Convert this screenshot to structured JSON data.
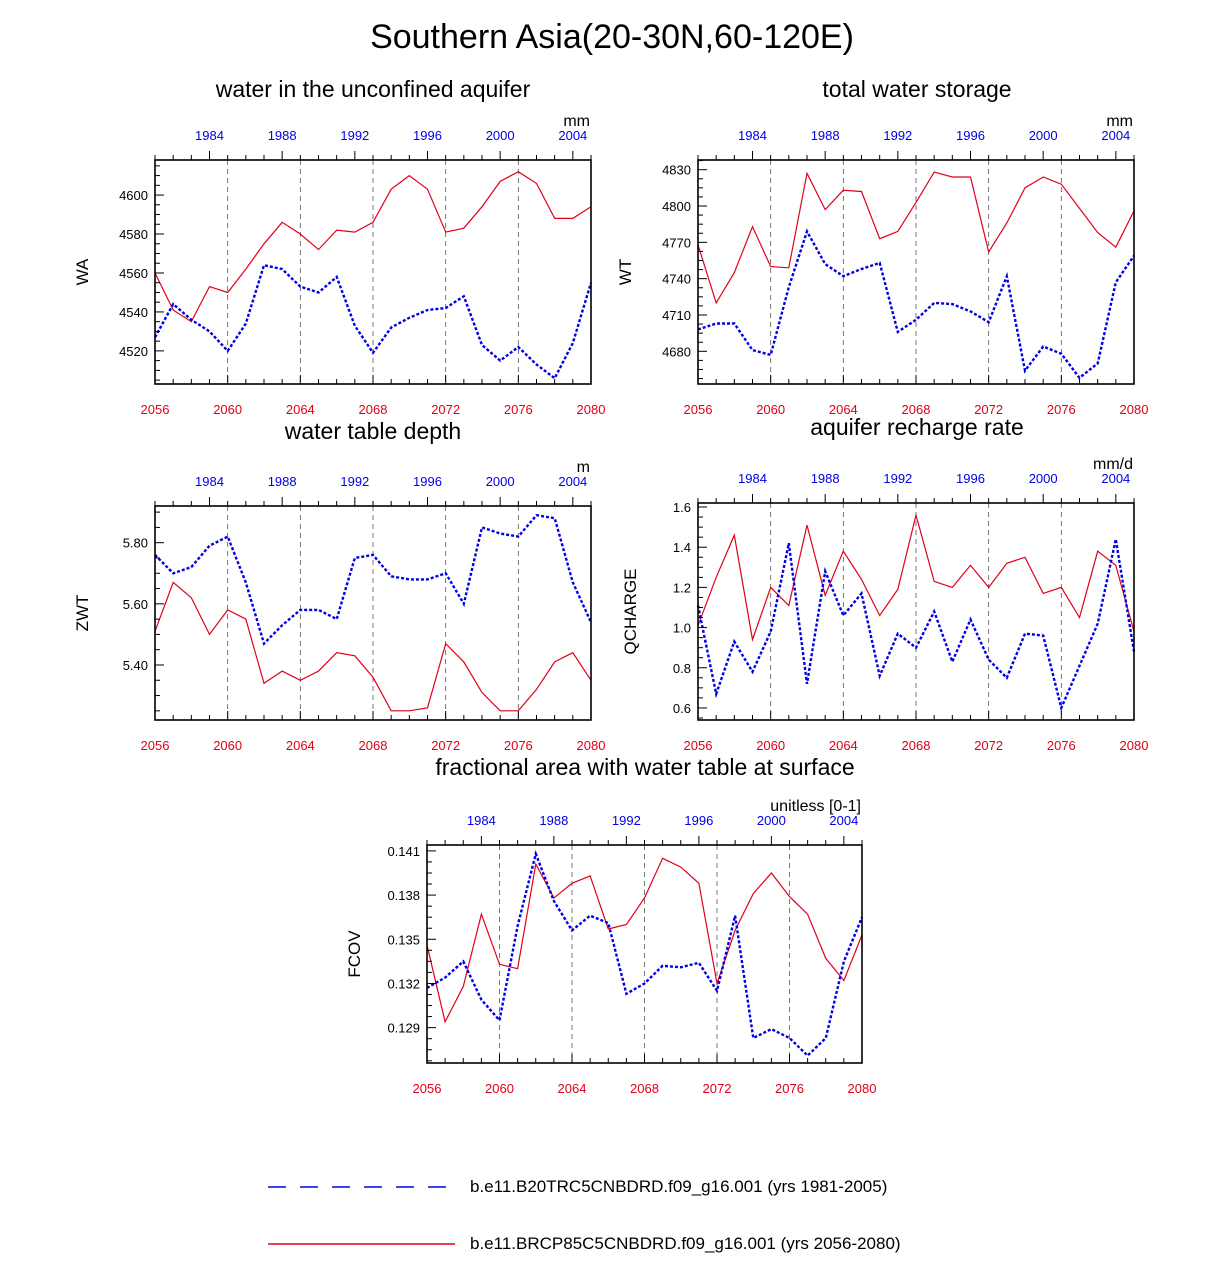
{
  "title": "Southern Asia(20-30N,60-120E)",
  "colors": {
    "future": "#e0001a",
    "historical": "#0000e6",
    "axis": "#000000"
  },
  "x_axes": {
    "bottom": {
      "min": 2056,
      "max": 2080,
      "ticks": [
        "2056",
        "2060",
        "2064",
        "2068",
        "2072",
        "2076",
        "2080"
      ]
    },
    "top": {
      "min": 1981,
      "max": 2005,
      "ticks": [
        "1984",
        "1988",
        "1992",
        "1996",
        "2000",
        "2004"
      ]
    }
  },
  "legend": [
    {
      "label": "b.e11.B20TRC5CNBDRD.f09_g16.001 (yrs 1981-2005)",
      "style": "dashed",
      "color": "#0000e6"
    },
    {
      "label": "b.e11.BRCP85C5CNBDRD.f09_g16.001 (yrs 2056-2080)",
      "style": "solid",
      "color": "#e0001a"
    }
  ],
  "chart_data": [
    {
      "type": "line",
      "title": "water in the unconfined aquifer",
      "ylabel": "WA",
      "units": "mm",
      "ylim": [
        4503,
        4618
      ],
      "yticks": [
        "4520",
        "4540",
        "4560",
        "4580",
        "4600"
      ],
      "series": [
        {
          "name": "b.e11.BRCP85C5CNBDRD.f09_g16.001 (yrs 2056-2080)",
          "x": [
            2056,
            2057,
            2058,
            2059,
            2060,
            2061,
            2062,
            2063,
            2064,
            2065,
            2066,
            2067,
            2068,
            2069,
            2070,
            2071,
            2072,
            2073,
            2074,
            2075,
            2076,
            2077,
            2078,
            2079,
            2080
          ],
          "values": [
            4560,
            4541,
            4535,
            4553,
            4550,
            4562,
            4575,
            4586,
            4580,
            4572,
            4582,
            4581,
            4586,
            4603,
            4610,
            4603,
            4581,
            4583,
            4594,
            4607,
            4612,
            4606,
            4588,
            4588,
            4594
          ]
        },
        {
          "name": "b.e11.B20TRC5CNBDRD.f09_g16.001 (yrs 1981-2005)",
          "x": [
            1981,
            1982,
            1983,
            1984,
            1985,
            1986,
            1987,
            1988,
            1989,
            1990,
            1991,
            1992,
            1993,
            1994,
            1995,
            1996,
            1997,
            1998,
            1999,
            2000,
            2001,
            2002,
            2003,
            2004,
            2005
          ],
          "values": [
            4527,
            4544,
            4536,
            4530,
            4520,
            4534,
            4564,
            4562,
            4553,
            4550,
            4558,
            4533,
            4519,
            4532,
            4537,
            4541,
            4542,
            4548,
            4523,
            4515,
            4522,
            4513,
            4506,
            4524,
            4555
          ]
        }
      ]
    },
    {
      "type": "line",
      "title": "total water storage",
      "ylabel": "WT",
      "units": "mm",
      "ylim": [
        4653,
        4838
      ],
      "yticks": [
        "4680",
        "4710",
        "4740",
        "4770",
        "4800",
        "4830"
      ],
      "series": [
        {
          "name": "b.e11.BRCP85C5CNBDRD.f09_g16.001 (yrs 2056-2080)",
          "x": [
            2056,
            2057,
            2058,
            2059,
            2060,
            2061,
            2062,
            2063,
            2064,
            2065,
            2066,
            2067,
            2068,
            2069,
            2070,
            2071,
            2072,
            2073,
            2074,
            2075,
            2076,
            2077,
            2078,
            2079,
            2080
          ],
          "values": [
            4768,
            4720,
            4745,
            4783,
            4750,
            4749,
            4827,
            4797,
            4813,
            4812,
            4773,
            4779,
            4803,
            4828,
            4824,
            4824,
            4762,
            4786,
            4815,
            4824,
            4818,
            4798,
            4778,
            4766,
            4796
          ]
        },
        {
          "name": "b.e11.B20TRC5CNBDRD.f09_g16.001 (yrs 1981-2005)",
          "x": [
            1981,
            1982,
            1983,
            1984,
            1985,
            1986,
            1987,
            1988,
            1989,
            1990,
            1991,
            1992,
            1993,
            1994,
            1995,
            1996,
            1997,
            1998,
            1999,
            2000,
            2001,
            2002,
            2003,
            2004,
            2005
          ],
          "values": [
            4698,
            4703,
            4703,
            4681,
            4677,
            4733,
            4779,
            4752,
            4742,
            4748,
            4753,
            4696,
            4706,
            4720,
            4719,
            4713,
            4704,
            4742,
            4664,
            4684,
            4678,
            4658,
            4670,
            4737,
            4759
          ]
        }
      ]
    },
    {
      "type": "line",
      "title": "water table depth",
      "ylabel": "ZWT",
      "units": "m",
      "ylim": [
        5.22,
        5.92
      ],
      "yticks": [
        "5.40",
        "5.60",
        "5.80"
      ],
      "series": [
        {
          "name": "b.e11.BRCP85C5CNBDRD.f09_g16.001 (yrs 2056-2080)",
          "x": [
            2056,
            2057,
            2058,
            2059,
            2060,
            2061,
            2062,
            2063,
            2064,
            2065,
            2066,
            2067,
            2068,
            2069,
            2070,
            2071,
            2072,
            2073,
            2074,
            2075,
            2076,
            2077,
            2078,
            2079,
            2080
          ],
          "values": [
            5.51,
            5.67,
            5.62,
            5.5,
            5.58,
            5.55,
            5.34,
            5.38,
            5.35,
            5.38,
            5.44,
            5.43,
            5.36,
            5.25,
            5.25,
            5.26,
            5.47,
            5.41,
            5.31,
            5.25,
            5.25,
            5.32,
            5.41,
            5.44,
            5.35
          ]
        },
        {
          "name": "b.e11.B20TRC5CNBDRD.f09_g16.001 (yrs 1981-2005)",
          "x": [
            1981,
            1982,
            1983,
            1984,
            1985,
            1986,
            1987,
            1988,
            1989,
            1990,
            1991,
            1992,
            1993,
            1994,
            1995,
            1996,
            1997,
            1998,
            1999,
            2000,
            2001,
            2002,
            2003,
            2004,
            2005
          ],
          "values": [
            5.76,
            5.7,
            5.72,
            5.79,
            5.82,
            5.67,
            5.47,
            5.53,
            5.58,
            5.58,
            5.55,
            5.75,
            5.76,
            5.69,
            5.68,
            5.68,
            5.7,
            5.6,
            5.85,
            5.83,
            5.82,
            5.89,
            5.88,
            5.67,
            5.54
          ]
        }
      ]
    },
    {
      "type": "line",
      "title": "aquifer recharge rate",
      "ylabel": "QCHARGE",
      "units": "mm/d",
      "ylim": [
        0.54,
        1.62
      ],
      "yticks": [
        "0.6",
        "0.8",
        "1.0",
        "1.2",
        "1.4",
        "1.6"
      ],
      "series": [
        {
          "name": "b.e11.BRCP85C5CNBDRD.f09_g16.001 (yrs 2056-2080)",
          "x": [
            2056,
            2057,
            2058,
            2059,
            2060,
            2061,
            2062,
            2063,
            2064,
            2065,
            2066,
            2067,
            2068,
            2069,
            2070,
            2071,
            2072,
            2073,
            2074,
            2075,
            2076,
            2077,
            2078,
            2079,
            2080
          ],
          "values": [
            1.01,
            1.25,
            1.46,
            0.94,
            1.2,
            1.11,
            1.51,
            1.16,
            1.38,
            1.24,
            1.06,
            1.19,
            1.56,
            1.23,
            1.2,
            1.31,
            1.2,
            1.32,
            1.35,
            1.17,
            1.2,
            1.05,
            1.38,
            1.31,
            0.98
          ]
        },
        {
          "name": "b.e11.B20TRC5CNBDRD.f09_g16.001 (yrs 1981-2005)",
          "x": [
            1981,
            1982,
            1983,
            1984,
            1985,
            1986,
            1987,
            1988,
            1989,
            1990,
            1991,
            1992,
            1993,
            1994,
            1995,
            1996,
            1997,
            1998,
            1999,
            2000,
            2001,
            2002,
            2003,
            2004,
            2005
          ],
          "values": [
            1.11,
            0.67,
            0.93,
            0.78,
            0.98,
            1.42,
            0.72,
            1.28,
            1.06,
            1.17,
            0.76,
            0.97,
            0.9,
            1.08,
            0.83,
            1.04,
            0.84,
            0.75,
            0.97,
            0.96,
            0.6,
            0.81,
            1.02,
            1.44,
            0.88
          ]
        }
      ]
    },
    {
      "type": "line",
      "title": "fractional area with water table at surface",
      "ylabel": "FCOV",
      "units": "unitless [0-1]",
      "ylim": [
        0.1266,
        0.1414
      ],
      "yticks": [
        "0.129",
        "0.132",
        "0.135",
        "0.138",
        "0.141"
      ],
      "series": [
        {
          "name": "b.e11.BRCP85C5CNBDRD.f09_g16.001 (yrs 2056-2080)",
          "x": [
            2056,
            2057,
            2058,
            2059,
            2060,
            2061,
            2062,
            2063,
            2064,
            2065,
            2066,
            2067,
            2068,
            2069,
            2070,
            2071,
            2072,
            2073,
            2074,
            2075,
            2076,
            2077,
            2078,
            2079,
            2080
          ],
          "values": [
            0.1346,
            0.1294,
            0.1318,
            0.1367,
            0.1333,
            0.133,
            0.1401,
            0.1378,
            0.1388,
            0.1393,
            0.1357,
            0.136,
            0.1378,
            0.1405,
            0.1399,
            0.1388,
            0.132,
            0.1356,
            0.1381,
            0.1395,
            0.1379,
            0.1367,
            0.1337,
            0.1322,
            0.1353
          ]
        },
        {
          "name": "b.e11.B20TRC5CNBDRD.f09_g16.001 (yrs 1981-2005)",
          "x": [
            1981,
            1982,
            1983,
            1984,
            1985,
            1986,
            1987,
            1988,
            1989,
            1990,
            1991,
            1992,
            1993,
            1994,
            1995,
            1996,
            1997,
            1998,
            1999,
            2000,
            2001,
            2002,
            2003,
            2004,
            2005
          ],
          "values": [
            0.1317,
            0.1324,
            0.1335,
            0.1309,
            0.1295,
            0.1359,
            0.1408,
            0.1376,
            0.1356,
            0.1366,
            0.1361,
            0.1313,
            0.132,
            0.1332,
            0.1331,
            0.1334,
            0.1315,
            0.1366,
            0.1283,
            0.1289,
            0.1283,
            0.1271,
            0.1283,
            0.1335,
            0.1365
          ]
        }
      ]
    }
  ]
}
